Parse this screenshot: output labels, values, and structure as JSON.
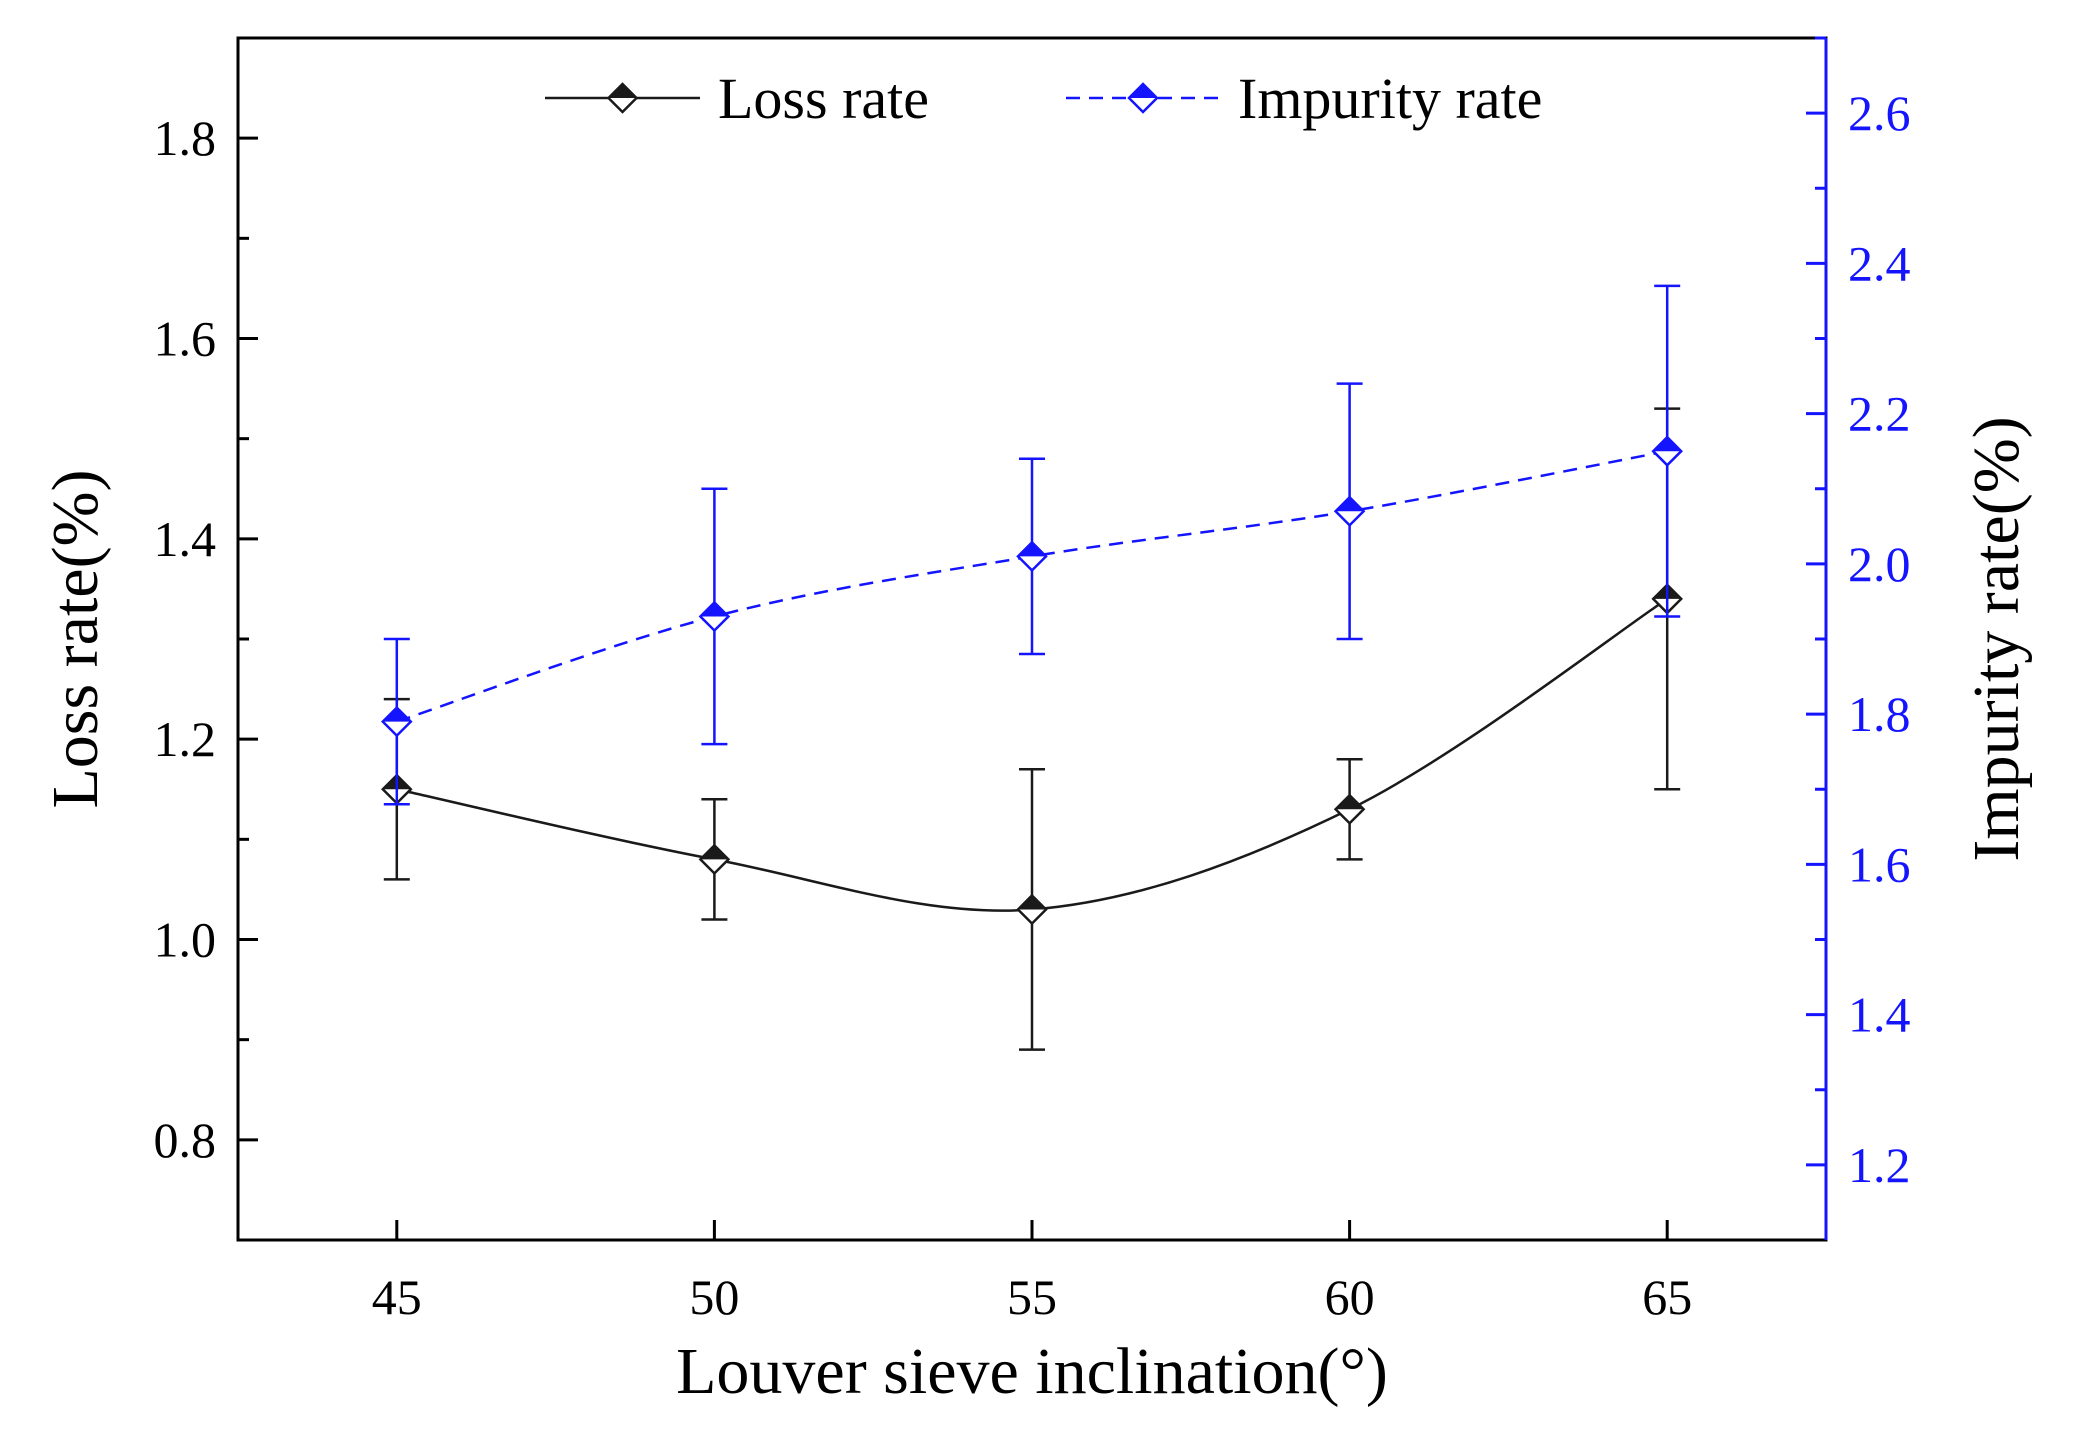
{
  "chart_data": {
    "type": "line",
    "title": "",
    "xlabel": "Louver sieve inclination(°)",
    "ylabel": "Loss rate(%)",
    "y2label": "Impurity rate(%)",
    "x": [
      45,
      50,
      55,
      60,
      65
    ],
    "x_ticks": [
      "45",
      "50",
      "55",
      "60",
      "65"
    ],
    "xlim": [
      42.5,
      67.5
    ],
    "ylim": [
      0.7,
      1.9
    ],
    "y2lim": [
      1.1,
      2.7
    ],
    "y_ticks": [
      "0.8",
      "1.0",
      "1.2",
      "1.4",
      "1.6",
      "1.8"
    ],
    "y2_ticks": [
      "1.2",
      "1.4",
      "1.6",
      "1.8",
      "2.0",
      "2.2",
      "2.4",
      "2.6"
    ],
    "legend_position": "top",
    "grid": false,
    "series": [
      {
        "name": "Loss rate",
        "axis": "left",
        "color": "#1a1a1a",
        "line_style": "solid",
        "marker": "half-filled-diamond",
        "values": [
          1.15,
          1.08,
          1.03,
          1.13,
          1.34
        ],
        "error_low": [
          1.06,
          1.02,
          0.89,
          1.08,
          1.15
        ],
        "error_high": [
          1.24,
          1.14,
          1.17,
          1.18,
          1.53
        ]
      },
      {
        "name": "Impurity rate",
        "axis": "right",
        "color": "#1414ff",
        "line_style": "dashed",
        "marker": "half-filled-diamond",
        "values": [
          1.79,
          1.93,
          2.01,
          2.07,
          2.15
        ],
        "error_low": [
          1.68,
          1.76,
          1.88,
          1.9,
          1.93
        ],
        "error_high": [
          1.9,
          2.1,
          2.14,
          2.24,
          2.37
        ]
      }
    ]
  }
}
